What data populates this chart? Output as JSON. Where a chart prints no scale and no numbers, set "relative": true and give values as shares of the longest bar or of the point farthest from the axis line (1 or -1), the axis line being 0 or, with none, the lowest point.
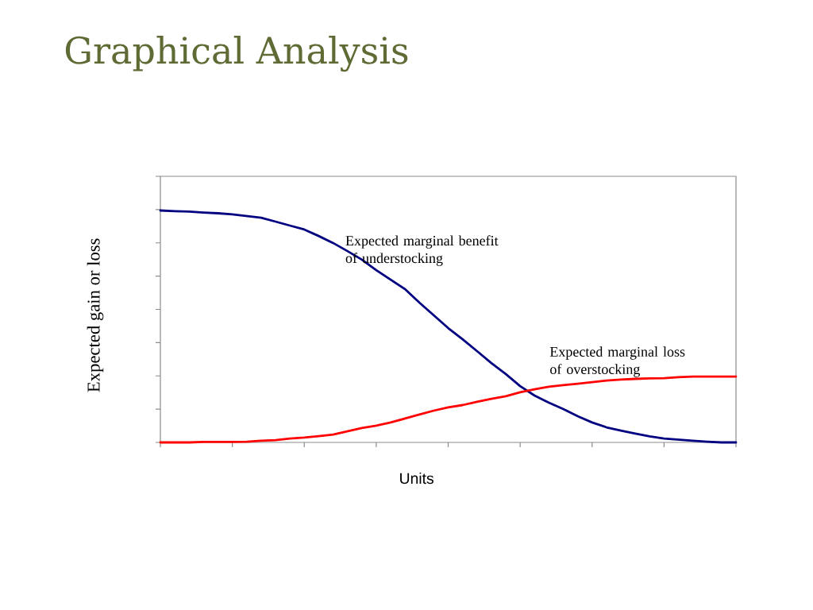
{
  "chart_data": {
    "type": "line",
    "title": "Graphical Analysis",
    "xlabel": "Units",
    "ylabel": "Expected gain or loss",
    "relative": true,
    "categories": [
      null,
      null,
      null,
      null,
      null,
      null,
      null,
      null,
      null,
      null,
      null,
      null,
      null,
      null,
      null,
      null,
      null,
      null,
      null,
      null,
      null,
      null,
      null,
      null,
      null,
      null,
      null,
      null,
      null,
      null,
      null,
      null,
      null,
      null,
      null,
      null,
      null,
      null,
      null,
      null,
      null
    ],
    "series": [
      {
        "name": "Expected marginal benefit of understocking",
        "color": "#000080",
        "values": [
          1.0,
          0.997,
          0.995,
          0.991,
          0.988,
          0.983,
          0.976,
          0.969,
          0.952,
          0.935,
          0.918,
          0.89,
          0.86,
          0.825,
          0.788,
          0.743,
          0.702,
          0.661,
          0.603,
          0.548,
          0.493,
          0.445,
          0.394,
          0.342,
          0.295,
          0.243,
          0.202,
          0.171,
          0.144,
          0.113,
          0.086,
          0.065,
          0.051,
          0.038,
          0.026,
          0.017,
          0.012,
          0.007,
          0.003,
          0.0,
          0.0
        ]
      },
      {
        "name": "Expected marginal loss of overstocking",
        "color": "#ff0000",
        "values": [
          0.0,
          0.0,
          0.0,
          0.002,
          0.002,
          0.002,
          0.003,
          0.007,
          0.01,
          0.017,
          0.021,
          0.027,
          0.034,
          0.048,
          0.062,
          0.072,
          0.086,
          0.103,
          0.12,
          0.137,
          0.151,
          0.161,
          0.175,
          0.188,
          0.199,
          0.216,
          0.229,
          0.24,
          0.247,
          0.253,
          0.26,
          0.267,
          0.271,
          0.274,
          0.276,
          0.277,
          0.281,
          0.284,
          0.284,
          0.284,
          0.284
        ]
      }
    ]
  }
}
